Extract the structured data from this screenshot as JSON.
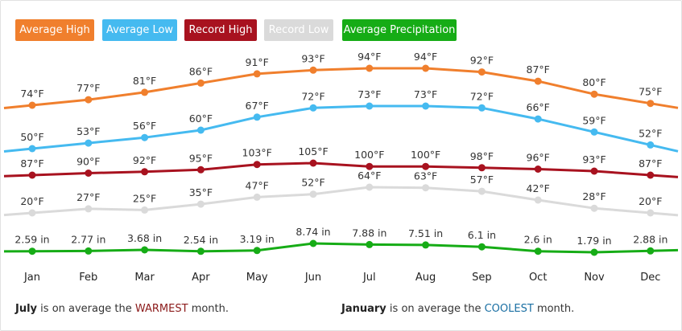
{
  "legend": [
    {
      "label": "Average High",
      "color": "#f07f2d",
      "text_color": "#ffffff"
    },
    {
      "label": "Average Low",
      "color": "#45baf0",
      "text_color": "#ffffff"
    },
    {
      "label": "Record High",
      "color": "#a8121f",
      "text_color": "#ffffff"
    },
    {
      "label": "Record Low",
      "color": "#dadada",
      "text_color": "#ffffff"
    },
    {
      "label": "Average Precipitation",
      "color": "#16ac16",
      "text_color": "#ffffff"
    }
  ],
  "chart_data": {
    "type": "line",
    "categories": [
      "Jan",
      "Feb",
      "Mar",
      "Apr",
      "May",
      "Jun",
      "Jul",
      "Aug",
      "Sep",
      "Oct",
      "Nov",
      "Dec"
    ],
    "series": [
      {
        "name": "Average High",
        "color": "#f07f2d",
        "unit": "°F",
        "values": [
          74,
          77,
          81,
          86,
          91,
          93,
          94,
          94,
          92,
          87,
          80,
          75
        ],
        "labels": [
          "74°F",
          "77°F",
          "81°F",
          "86°F",
          "91°F",
          "93°F",
          "94°F",
          "94°F",
          "92°F",
          "87°F",
          "80°F",
          "75°F"
        ]
      },
      {
        "name": "Average Low",
        "color": "#45baf0",
        "unit": "°F",
        "values": [
          50,
          53,
          56,
          60,
          67,
          72,
          73,
          73,
          72,
          66,
          59,
          52
        ],
        "labels": [
          "50°F",
          "53°F",
          "56°F",
          "60°F",
          "67°F",
          "72°F",
          "73°F",
          "73°F",
          "72°F",
          "66°F",
          "59°F",
          "52°F"
        ]
      },
      {
        "name": "Record High",
        "color": "#a8121f",
        "unit": "°F",
        "values": [
          87,
          90,
          92,
          95,
          103,
          105,
          100,
          100,
          98,
          96,
          93,
          87
        ],
        "labels": [
          "87°F",
          "90°F",
          "92°F",
          "95°F",
          "103°F",
          "105°F",
          "100°F",
          "100°F",
          "98°F",
          "96°F",
          "93°F",
          "87°F"
        ]
      },
      {
        "name": "Record Low",
        "color": "#dadada",
        "unit": "°F",
        "values": [
          20,
          27,
          25,
          35,
          47,
          52,
          64,
          63,
          57,
          42,
          28,
          20
        ],
        "labels": [
          "20°F",
          "27°F",
          "25°F",
          "35°F",
          "47°F",
          "52°F",
          "64°F",
          "63°F",
          "57°F",
          "42°F",
          "28°F",
          "20°F"
        ]
      },
      {
        "name": "Average Precipitation",
        "color": "#16ac16",
        "unit": "in",
        "values": [
          2.59,
          2.77,
          3.68,
          2.54,
          3.19,
          8.74,
          7.88,
          7.51,
          6.1,
          2.6,
          1.79,
          2.88
        ],
        "labels": [
          "2.59 in",
          "2.77 in",
          "3.68 in",
          "2.54 in",
          "3.19 in",
          "8.74 in",
          "7.88 in",
          "7.51 in",
          "6.1 in",
          "2.6 in",
          "1.79 in",
          "2.88 in"
        ]
      }
    ],
    "grid": false,
    "legend": "top"
  },
  "footer": {
    "warm_month": "July",
    "warm_text_1": "is on average the",
    "warm_word": "WARMEST",
    "warm_text_2": "month.",
    "cool_month": "January",
    "cool_text_1": "is on average the",
    "cool_word": "COOLEST",
    "cool_text_2": "month."
  }
}
